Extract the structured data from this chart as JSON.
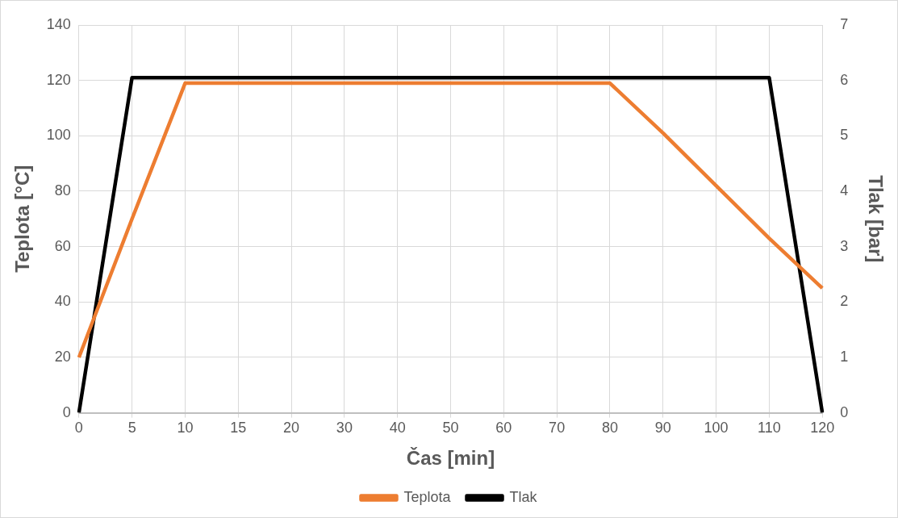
{
  "chart_data": {
    "type": "line",
    "xlabel": "Čas [min]",
    "ylabel": "Teplota [°C]",
    "y2label": "Tlak [bar]",
    "categories": [
      "0",
      "5",
      "10",
      "15",
      "20",
      "30",
      "40",
      "50",
      "60",
      "70",
      "80",
      "90",
      "100",
      "110",
      "120"
    ],
    "series": [
      {
        "name": "Teplota",
        "color": "#ed7d31",
        "values": [
          20,
          70,
          119,
          119,
          119,
          119,
          119,
          119,
          119,
          119,
          119,
          101,
          82,
          63,
          45
        ]
      },
      {
        "name": "Tlak",
        "color": "#000000",
        "axis": "y2",
        "values": [
          0,
          6.05,
          6.05,
          6.05,
          6.05,
          6.05,
          6.05,
          6.05,
          6.05,
          6.05,
          6.05,
          6.05,
          6.05,
          6.05,
          0
        ]
      }
    ],
    "ylim": [
      0,
      140
    ],
    "yticks": [
      0,
      20,
      40,
      60,
      80,
      100,
      120,
      140
    ],
    "y2lim": [
      0,
      7
    ],
    "y2ticks": [
      0,
      1,
      2,
      3,
      4,
      5,
      6,
      7
    ],
    "grid": true,
    "legend": "bottom",
    "marker": "none",
    "line_style": "solid"
  }
}
